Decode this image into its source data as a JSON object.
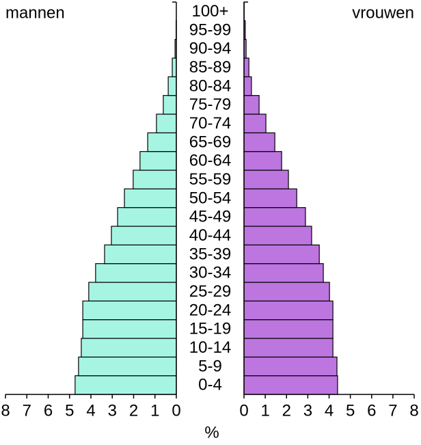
{
  "chart_data": {
    "type": "pyramid",
    "categories": [
      "0-4",
      "5-9",
      "10-14",
      "15-19",
      "20-24",
      "25-29",
      "30-34",
      "35-39",
      "40-44",
      "45-49",
      "50-54",
      "55-59",
      "60-64",
      "65-69",
      "70-74",
      "75-79",
      "80-84",
      "85-89",
      "90-94",
      "95-99",
      "100+"
    ],
    "series": [
      {
        "name": "mannen",
        "color": "#a6f5e3",
        "values": [
          4.74,
          4.58,
          4.45,
          4.38,
          4.38,
          4.1,
          3.78,
          3.36,
          3.04,
          2.75,
          2.43,
          2.02,
          1.7,
          1.34,
          0.93,
          0.61,
          0.38,
          0.19,
          0.06,
          0.01,
          0
        ]
      },
      {
        "name": "vrouwen",
        "color": "#bd75e0",
        "values": [
          4.4,
          4.37,
          4.18,
          4.18,
          4.18,
          4.02,
          3.73,
          3.54,
          3.18,
          2.89,
          2.48,
          2.09,
          1.77,
          1.45,
          1.03,
          0.71,
          0.35,
          0.23,
          0.1,
          0.06,
          0.01
        ]
      }
    ],
    "xlabel": "%",
    "xlim": [
      0,
      8
    ],
    "xticks": [
      0,
      1,
      2,
      3,
      4,
      5,
      6,
      7,
      8
    ]
  }
}
